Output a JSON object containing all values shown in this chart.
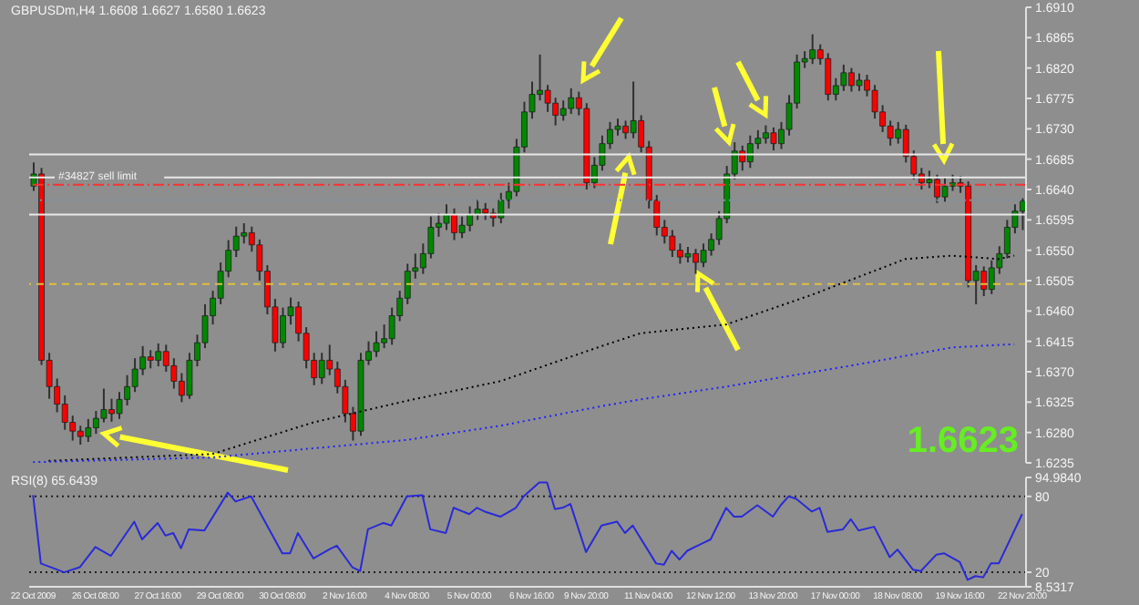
{
  "chart_data": [
    {
      "type": "candlestick",
      "title": "GBPUSDm,H4  1.6608 1.6627 1.6580 1.6623",
      "categories": [
        null,
        null,
        null,
        null,
        null,
        null,
        null,
        null,
        null,
        null,
        null,
        null,
        null,
        null,
        null,
        null,
        null,
        null,
        null,
        null,
        null,
        null,
        null,
        null,
        null,
        null,
        null,
        null,
        null,
        null,
        null,
        null,
        null,
        null,
        null,
        null,
        null,
        null,
        null,
        null,
        null,
        null,
        null,
        null,
        null,
        null,
        null,
        null,
        null,
        null,
        null,
        null,
        null,
        null,
        null,
        null,
        null,
        null,
        null,
        null,
        null,
        null,
        null,
        null,
        null,
        null,
        null,
        null,
        null,
        null,
        null,
        null,
        null,
        null,
        null,
        null,
        null,
        null,
        null,
        null,
        null,
        null,
        null,
        null,
        null,
        null,
        null,
        null,
        null,
        null,
        null,
        null,
        null,
        null,
        null,
        null,
        null,
        null,
        null,
        null,
        null,
        null,
        null,
        null,
        null,
        null,
        null,
        null,
        null,
        null,
        null,
        null,
        null,
        null,
        null,
        null,
        null,
        null,
        null,
        null,
        null,
        null,
        null,
        null,
        null,
        null,
        null,
        null
      ],
      "ohlc": [
        [
          1.6645,
          1.668,
          1.6638,
          1.6663
        ],
        [
          1.6663,
          1.6672,
          1.638,
          1.6387
        ],
        [
          1.6387,
          1.6398,
          1.633,
          1.6348
        ],
        [
          1.6348,
          1.636,
          1.631,
          1.6322
        ],
        [
          1.6322,
          1.6335,
          1.6284,
          1.6295
        ],
        [
          1.6295,
          1.6305,
          1.6268,
          1.6282
        ],
        [
          1.6282,
          1.629,
          1.6262,
          1.6274
        ],
        [
          1.6274,
          1.63,
          1.6266,
          1.6287
        ],
        [
          1.6287,
          1.6312,
          1.6278,
          1.6301
        ],
        [
          1.6301,
          1.6345,
          1.6295,
          1.6314
        ],
        [
          1.6314,
          1.633,
          1.6296,
          1.6308
        ],
        [
          1.6308,
          1.634,
          1.63,
          1.6329
        ],
        [
          1.6329,
          1.6365,
          1.632,
          1.6348
        ],
        [
          1.6348,
          1.639,
          1.634,
          1.6374
        ],
        [
          1.6374,
          1.6408,
          1.6365,
          1.6392
        ],
        [
          1.6392,
          1.6402,
          1.6375,
          1.6387
        ],
        [
          1.6387,
          1.6412,
          1.6378,
          1.64
        ],
        [
          1.64,
          1.641,
          1.637,
          1.6379
        ],
        [
          1.6379,
          1.639,
          1.6345,
          1.6356
        ],
        [
          1.6356,
          1.6368,
          1.6325,
          1.6335
        ],
        [
          1.6335,
          1.6398,
          1.633,
          1.6387
        ],
        [
          1.6387,
          1.6425,
          1.6378,
          1.6413
        ],
        [
          1.6413,
          1.647,
          1.6405,
          1.6453
        ],
        [
          1.6453,
          1.649,
          1.644,
          1.6479
        ],
        [
          1.6479,
          1.6532,
          1.647,
          1.6519
        ],
        [
          1.6519,
          1.6565,
          1.651,
          1.655
        ],
        [
          1.655,
          1.6585,
          1.654,
          1.6571
        ],
        [
          1.6571,
          1.659,
          1.656,
          1.6576
        ],
        [
          1.6576,
          1.6585,
          1.6548,
          1.6558
        ],
        [
          1.6558,
          1.6566,
          1.6505,
          1.6519
        ],
        [
          1.6519,
          1.6528,
          1.6455,
          1.6466
        ],
        [
          1.6466,
          1.6478,
          1.64,
          1.6413
        ],
        [
          1.6413,
          1.6465,
          1.6405,
          1.6453
        ],
        [
          1.6453,
          1.648,
          1.644,
          1.6466
        ],
        [
          1.6466,
          1.6474,
          1.6415,
          1.6427
        ],
        [
          1.6427,
          1.6436,
          1.6375,
          1.6387
        ],
        [
          1.6387,
          1.6398,
          1.635,
          1.6361
        ],
        [
          1.6361,
          1.6398,
          1.6352,
          1.6387
        ],
        [
          1.6387,
          1.641,
          1.6365,
          1.6374
        ],
        [
          1.6374,
          1.6385,
          1.6338,
          1.6348
        ],
        [
          1.6348,
          1.6358,
          1.6295,
          1.6308
        ],
        [
          1.6308,
          1.6318,
          1.6268,
          1.6282
        ],
        [
          1.6282,
          1.6398,
          1.6275,
          1.6387
        ],
        [
          1.6387,
          1.6415,
          1.638,
          1.64
        ],
        [
          1.64,
          1.643,
          1.6392,
          1.6413
        ],
        [
          1.6413,
          1.644,
          1.6405,
          1.6419
        ],
        [
          1.6419,
          1.6465,
          1.641,
          1.6453
        ],
        [
          1.6453,
          1.649,
          1.6445,
          1.6479
        ],
        [
          1.6479,
          1.653,
          1.647,
          1.6519
        ],
        [
          1.6519,
          1.6545,
          1.6508,
          1.6524
        ],
        [
          1.6524,
          1.656,
          1.6515,
          1.6545
        ],
        [
          1.6545,
          1.66,
          1.6538,
          1.6584
        ],
        [
          1.6584,
          1.6605,
          1.657,
          1.659
        ],
        [
          1.659,
          1.6618,
          1.658,
          1.6603
        ],
        [
          1.6603,
          1.6612,
          1.6565,
          1.6576
        ],
        [
          1.6576,
          1.66,
          1.6568,
          1.6587
        ],
        [
          1.6587,
          1.6615,
          1.6578,
          1.6603
        ],
        [
          1.6603,
          1.6625,
          1.6595,
          1.6611
        ],
        [
          1.6611,
          1.662,
          1.6595,
          1.6605
        ],
        [
          1.6605,
          1.6612,
          1.6585,
          1.6598
        ],
        [
          1.6598,
          1.6635,
          1.659,
          1.6624
        ],
        [
          1.6624,
          1.665,
          1.6612,
          1.6637
        ],
        [
          1.6637,
          1.6715,
          1.663,
          1.6703
        ],
        [
          1.6703,
          1.677,
          1.6695,
          1.6755
        ],
        [
          1.6755,
          1.68,
          1.6745,
          1.6781
        ],
        [
          1.6781,
          1.684,
          1.6772,
          1.6787
        ],
        [
          1.6787,
          1.6795,
          1.6755,
          1.6768
        ],
        [
          1.6768,
          1.6776,
          1.6735,
          1.675
        ],
        [
          1.675,
          1.6772,
          1.6742,
          1.676
        ],
        [
          1.676,
          1.679,
          1.6752,
          1.6776
        ],
        [
          1.6776,
          1.6785,
          1.675,
          1.676
        ],
        [
          1.676,
          1.6768,
          1.664,
          1.665
        ],
        [
          1.665,
          1.6688,
          1.6642,
          1.6676
        ],
        [
          1.6676,
          1.672,
          1.6668,
          1.6708
        ],
        [
          1.6708,
          1.674,
          1.67,
          1.6729
        ],
        [
          1.6729,
          1.6745,
          1.672,
          1.6734
        ],
        [
          1.6734,
          1.6742,
          1.6715,
          1.6724
        ],
        [
          1.6724,
          1.68,
          1.6716,
          1.6742
        ],
        [
          1.6742,
          1.675,
          1.6695,
          1.6703
        ],
        [
          1.6703,
          1.6712,
          1.6612,
          1.6624
        ],
        [
          1.6624,
          1.6632,
          1.6572,
          1.6584
        ],
        [
          1.6584,
          1.6595,
          1.656,
          1.6571
        ],
        [
          1.6571,
          1.658,
          1.654,
          1.655
        ],
        [
          1.655,
          1.656,
          1.653,
          1.654
        ],
        [
          1.654,
          1.6555,
          1.6532,
          1.6545
        ],
        [
          1.6545,
          1.6552,
          1.6515,
          1.6532
        ],
        [
          1.6532,
          1.656,
          1.6525,
          1.655
        ],
        [
          1.655,
          1.6575,
          1.6542,
          1.6566
        ],
        [
          1.6566,
          1.6608,
          1.6558,
          1.6597
        ],
        [
          1.6597,
          1.6675,
          1.659,
          1.6663
        ],
        [
          1.6663,
          1.671,
          1.6655,
          1.6697
        ],
        [
          1.6697,
          1.6705,
          1.6668,
          1.6681
        ],
        [
          1.6681,
          1.672,
          1.6672,
          1.6708
        ],
        [
          1.6708,
          1.6728,
          1.67,
          1.6716
        ],
        [
          1.6716,
          1.6735,
          1.6708,
          1.6724
        ],
        [
          1.6724,
          1.6732,
          1.6698,
          1.6708
        ],
        [
          1.6708,
          1.674,
          1.67,
          1.6729
        ],
        [
          1.6729,
          1.678,
          1.672,
          1.6768
        ],
        [
          1.6768,
          1.684,
          1.676,
          1.6829
        ],
        [
          1.6829,
          1.6845,
          1.682,
          1.6834
        ],
        [
          1.6834,
          1.687,
          1.6826,
          1.6847
        ],
        [
          1.6847,
          1.6855,
          1.6825,
          1.6834
        ],
        [
          1.6834,
          1.6842,
          1.6772,
          1.6781
        ],
        [
          1.6781,
          1.6805,
          1.6772,
          1.6794
        ],
        [
          1.6794,
          1.6825,
          1.6786,
          1.6813
        ],
        [
          1.6813,
          1.682,
          1.6785,
          1.6794
        ],
        [
          1.6794,
          1.6812,
          1.6786,
          1.6802
        ],
        [
          1.6802,
          1.681,
          1.6778,
          1.6787
        ],
        [
          1.6787,
          1.6795,
          1.6745,
          1.6755
        ],
        [
          1.6755,
          1.6765,
          1.6725,
          1.6734
        ],
        [
          1.6734,
          1.6742,
          1.6705,
          1.6716
        ],
        [
          1.6716,
          1.674,
          1.6708,
          1.6729
        ],
        [
          1.6729,
          1.6736,
          1.668,
          1.6689
        ],
        [
          1.6689,
          1.6698,
          1.6655,
          1.6663
        ],
        [
          1.6663,
          1.6672,
          1.664,
          1.665
        ],
        [
          1.665,
          1.6668,
          1.6642,
          1.6655
        ],
        [
          1.6655,
          1.6662,
          1.662,
          1.6629
        ],
        [
          1.6629,
          1.6658,
          1.6622,
          1.6645
        ],
        [
          1.6645,
          1.6662,
          1.6638,
          1.665
        ],
        [
          1.665,
          1.666,
          1.6635,
          1.6645
        ],
        [
          1.6645,
          1.6652,
          1.6495,
          1.6505
        ],
        [
          1.6505,
          1.6528,
          1.647,
          1.6519
        ],
        [
          1.6519,
          1.6526,
          1.6482,
          1.6492
        ],
        [
          1.6492,
          1.6535,
          1.6485,
          1.6524
        ],
        [
          1.6524,
          1.6556,
          1.6515,
          1.6545
        ],
        [
          1.6545,
          1.6595,
          1.6538,
          1.6584
        ],
        [
          1.6584,
          1.6618,
          1.6575,
          1.6608
        ],
        [
          1.6608,
          1.6627,
          1.658,
          1.6623
        ]
      ],
      "series": [
        {
          "type": "line",
          "color": "#000000",
          "line_style": "dotted",
          "values": [
            null,
            null,
            1.6238,
            null,
            null,
            null,
            null,
            null,
            null,
            null,
            null,
            null,
            null,
            null,
            null,
            null,
            null,
            null,
            null,
            null,
            null,
            null,
            null,
            1.6248,
            null,
            null,
            null,
            null,
            null,
            null,
            null,
            null,
            null,
            null,
            null,
            null,
            1.6295,
            null,
            null,
            null,
            null,
            null,
            null,
            null,
            null,
            null,
            null,
            null,
            1.6327,
            null,
            null,
            null,
            null,
            null,
            null,
            null,
            null,
            null,
            null,
            null,
            1.6356,
            null,
            null,
            null,
            null,
            null,
            null,
            null,
            null,
            null,
            null,
            null,
            null,
            1.6408,
            null,
            null,
            null,
            null,
            1.6427,
            null,
            null,
            null,
            null,
            null,
            null,
            null,
            null,
            null,
            null,
            1.644,
            null,
            null,
            null,
            null,
            null,
            null,
            null,
            null,
            null,
            null,
            1.6484,
            null,
            null,
            null,
            null,
            null,
            null,
            null,
            null,
            null,
            null,
            null,
            1.6537,
            null,
            null,
            null,
            null,
            null,
            1.6542,
            null,
            null,
            null,
            null,
            null,
            1.6537,
            null,
            1.6542,
            null
          ]
        },
        {
          "type": "line",
          "color": "#2020ff",
          "line_style": "dotted",
          "values": [
            1.6236,
            null,
            null,
            null,
            null,
            null,
            null,
            null,
            null,
            null,
            null,
            null,
            null,
            null,
            null,
            null,
            null,
            null,
            null,
            null,
            null,
            null,
            null,
            1.6243,
            null,
            null,
            null,
            null,
            null,
            null,
            null,
            null,
            null,
            null,
            null,
            null,
            null,
            null,
            null,
            null,
            null,
            null,
            null,
            null,
            null,
            null,
            null,
            null,
            1.6269,
            null,
            null,
            null,
            null,
            null,
            null,
            null,
            null,
            null,
            null,
            null,
            1.629,
            null,
            null,
            null,
            null,
            null,
            null,
            null,
            null,
            null,
            null,
            null,
            null,
            1.6319,
            null,
            null,
            null,
            null,
            1.6329,
            null,
            null,
            null,
            null,
            null,
            null,
            null,
            null,
            null,
            null,
            1.6348,
            null,
            null,
            null,
            null,
            null,
            null,
            null,
            null,
            null,
            null,
            null,
            null,
            null,
            null,
            null,
            1.6379,
            null,
            null,
            null,
            null,
            null,
            null,
            null,
            null,
            null,
            null,
            null,
            null,
            1.6406,
            null,
            null,
            null,
            null,
            null,
            null,
            null,
            1.6411,
            null
          ]
        }
      ],
      "ylim": [
        1.6235,
        1.691
      ],
      "yticks": [
        {
          "value": 1.691,
          "label": "1.6910"
        },
        1.6865,
        {
          "value": 1.682,
          "label": "1.6820"
        },
        1.6775,
        {
          "value": 1.673,
          "label": "1.6730"
        },
        1.6685,
        {
          "value": 1.664,
          "label": "1.6640"
        },
        1.6595,
        {
          "value": 1.655,
          "label": "1.6550"
        },
        1.6505,
        {
          "value": 1.646,
          "label": "1.6460"
        },
        1.6415,
        {
          "value": 1.637,
          "label": "1.6370"
        },
        1.6325,
        {
          "value": 1.628,
          "label": "1.6280"
        },
        1.6235
      ],
      "ref_lines": [
        {
          "axis": "y",
          "value": 1.6692,
          "color": "#e8e8e8",
          "line_style": "solid"
        },
        {
          "axis": "y",
          "value": 1.6658,
          "color": "#e8e8e8",
          "line_style": "solid"
        },
        {
          "axis": "y",
          "value": 1.6647,
          "color": "#ff3030",
          "line_style": "dashdot",
          "label": "#34827 sell limit"
        },
        {
          "axis": "y",
          "value": 1.6624,
          "color": "#7890a8",
          "line_style": "dotted"
        },
        {
          "axis": "y",
          "value": 1.6603,
          "color": "#e8e8e8",
          "line_style": "solid"
        },
        {
          "axis": "y",
          "value": 1.65,
          "color": "#e0c040",
          "line_style": "dashed"
        }
      ],
      "annotations": [
        "1.6623"
      ]
    },
    {
      "type": "line",
      "title": "RSI(8) 65.6439",
      "categories": [
        "22 Oct 2009",
        null,
        null,
        null,
        null,
        null,
        null,
        null,
        "26 Oct 08:00",
        null,
        null,
        null,
        null,
        null,
        null,
        null,
        "27 Oct 16:00",
        null,
        null,
        null,
        null,
        null,
        null,
        null,
        "29 Oct 08:00",
        null,
        null,
        null,
        null,
        null,
        null,
        null,
        "30 Oct 08:00",
        null,
        null,
        null,
        null,
        null,
        null,
        null,
        "2 Nov 16:00",
        null,
        null,
        null,
        null,
        null,
        null,
        null,
        "4 Nov 08:00",
        null,
        null,
        null,
        null,
        null,
        null,
        null,
        "5 Nov 00:00",
        null,
        null,
        null,
        null,
        null,
        null,
        null,
        "6 Nov 16:00",
        null,
        null,
        null,
        null,
        null,
        null,
        "9 Nov 20:00",
        null,
        null,
        null,
        null,
        null,
        null,
        null,
        "11 Nov 04:00",
        null,
        null,
        null,
        null,
        null,
        null,
        null,
        "12 Nov 12:00",
        null,
        null,
        null,
        null,
        null,
        null,
        null,
        "13 Nov 20:00",
        null,
        null,
        null,
        null,
        null,
        null,
        null,
        "17 Nov 00:00",
        null,
        null,
        null,
        null,
        null,
        null,
        null,
        "18 Nov 08:00",
        null,
        null,
        null,
        null,
        null,
        null,
        null,
        "19 Nov 16:00",
        null,
        null,
        null,
        null,
        null,
        null,
        null,
        "22 Nov 20:00"
      ],
      "series": [
        {
          "color": "#2a2ad8",
          "values": [
            81,
            27,
            null,
            null,
            20,
            null,
            24,
            null,
            40,
            null,
            33,
            null,
            null,
            60,
            46,
            null,
            59,
            49,
            51,
            39,
            54,
            null,
            53,
            null,
            null,
            83,
            76,
            null,
            80,
            null,
            null,
            null,
            35,
            35,
            51,
            null,
            31,
            null,
            38,
            41,
            null,
            24,
            21,
            54,
            null,
            59,
            57,
            null,
            80,
            null,
            81,
            54,
            null,
            51,
            71,
            null,
            66,
            71,
            68,
            null,
            64,
            null,
            71,
            80,
            null,
            91,
            91,
            70,
            71,
            74,
            null,
            36,
            null,
            57,
            null,
            60,
            51,
            57,
            null,
            null,
            27,
            26,
            37,
            30,
            37,
            null,
            43,
            46,
            null,
            71,
            64,
            64,
            null,
            73,
            null,
            64,
            73,
            80,
            78,
            null,
            68,
            71,
            52,
            null,
            54,
            62,
            53,
            null,
            56,
            null,
            32,
            38,
            30,
            22,
            21,
            null,
            34,
            35,
            null,
            28,
            14,
            17,
            16,
            27,
            27,
            null,
            null,
            66
          ]
        }
      ],
      "ylim": [
        8.5317,
        94.984
      ],
      "yticks": [
        {
          "value": 94.984,
          "label": "94.9840"
        },
        80,
        20,
        {
          "value": 8.5317,
          "label": "8.5317"
        }
      ],
      "ref_lines": [
        {
          "axis": "y",
          "value": 80,
          "color": "#202020",
          "line_style": "dotted"
        },
        {
          "axis": "y",
          "value": 20,
          "color": "#202020",
          "line_style": "dotted"
        }
      ]
    }
  ]
}
